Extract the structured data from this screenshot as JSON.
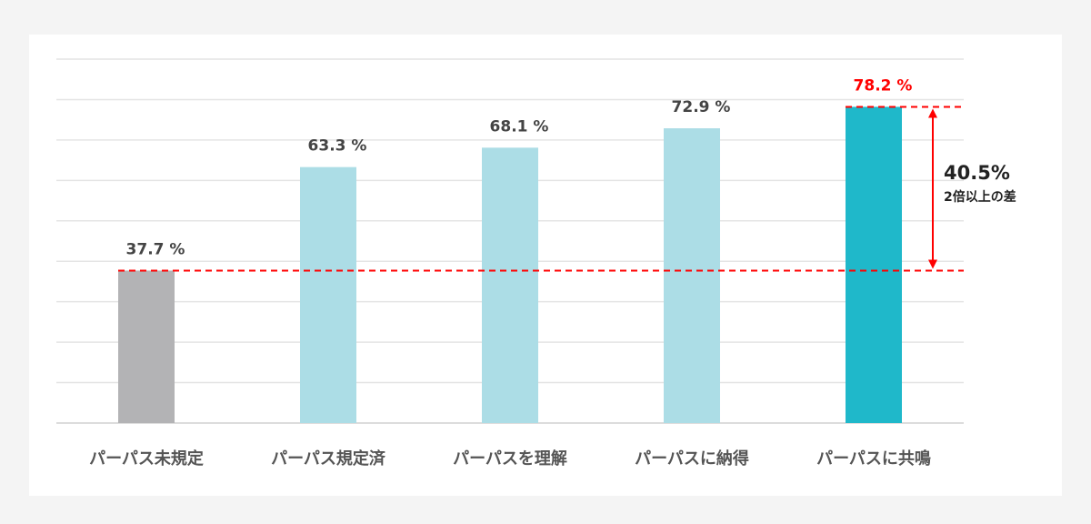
{
  "chart_data": {
    "type": "bar",
    "categories": [
      "パーパス未規定",
      "パーパス規定済",
      "パーパスを理解",
      "パーパスに納得",
      "パーパスに共鳴"
    ],
    "values": [
      37.7,
      63.3,
      68.1,
      72.9,
      78.2
    ],
    "value_labels": [
      "37.7 %",
      "63.3 %",
      "68.1 %",
      "72.9 %",
      "78.2 %"
    ],
    "ylim": [
      0,
      90
    ],
    "grid": true,
    "gridline_step": 10,
    "colors": [
      "#b3b3b5",
      "#acdde6",
      "#acdde6",
      "#acdde6",
      "#1fb8ca"
    ],
    "highlight_label_color": "#ff0000",
    "label_color": "#444444",
    "annotation": {
      "value": "40.5%",
      "text": "2倍以上の差",
      "from": 37.7,
      "to": 78.2,
      "color": "#ff0000"
    }
  }
}
